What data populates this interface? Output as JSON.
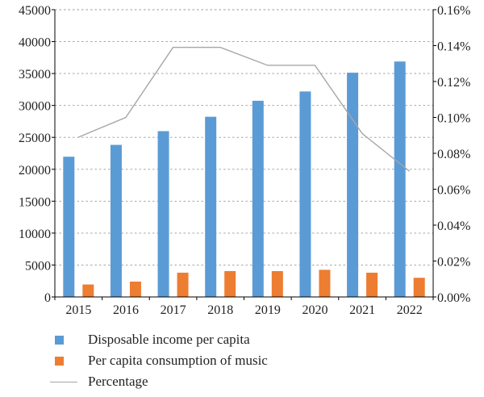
{
  "chart_data": {
    "type": "bar",
    "categories": [
      "2015",
      "2016",
      "2017",
      "2018",
      "2019",
      "2020",
      "2021",
      "2022"
    ],
    "series": [
      {
        "name": "Disposable income per capita",
        "type": "bar",
        "axis": "left",
        "color": "#5b9bd5",
        "values": [
          21966,
          23821,
          25974,
          28228,
          30733,
          32189,
          35128,
          36883
        ]
      },
      {
        "name": "Per capita consumption of music",
        "type": "bar",
        "axis": "left",
        "color": "#ed7d31",
        "values": [
          1950,
          2400,
          3800,
          4050,
          4050,
          4250,
          3800,
          3000
        ]
      },
      {
        "name": "Percentage",
        "type": "line",
        "axis": "right",
        "color": "#a6a6a6",
        "values": [
          0.00089,
          0.001,
          0.00139,
          0.00139,
          0.00129,
          0.00129,
          0.00091,
          0.0007
        ]
      }
    ],
    "left_axis": {
      "ylim": [
        0,
        45000
      ],
      "ticks": [
        "0",
        "5000",
        "10000",
        "15000",
        "20000",
        "25000",
        "30000",
        "35000",
        "40000",
        "45000"
      ]
    },
    "right_axis": {
      "ylim": [
        0,
        0.0016
      ],
      "ticks": [
        "0.00%",
        "0.02%",
        "0.04%",
        "0.06%",
        "0.08%",
        "0.10%",
        "0.12%",
        "0.14%",
        "0.16%"
      ]
    },
    "grid": "horizontal-dashed",
    "legend_position": "bottom-left",
    "legend": [
      {
        "label": "Disposable income per capita",
        "marker": "square",
        "color": "#5b9bd5"
      },
      {
        "label": "Per capita consumption of music",
        "marker": "square",
        "color": "#ed7d31"
      },
      {
        "label": "Percentage",
        "marker": "line",
        "color": "#a6a6a6"
      }
    ]
  }
}
